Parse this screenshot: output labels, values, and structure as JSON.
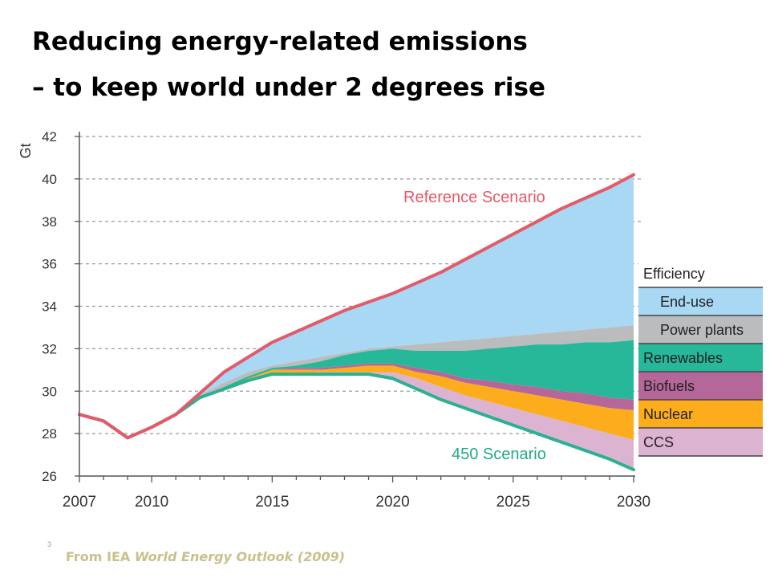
{
  "slide": {
    "title_line1": "Reducing energy-related emissions",
    "title_line2": "– to keep world under 2 degrees rise",
    "slide_number": "3",
    "source_prefix": "From IEA ",
    "source_work": "World Energy Outlook (2009)"
  },
  "chart_data": {
    "type": "area",
    "ylabel": "Gt",
    "xlim": [
      2007,
      2030
    ],
    "ylim": [
      26,
      42
    ],
    "yticks": [
      26,
      28,
      30,
      32,
      34,
      36,
      38,
      40,
      42
    ],
    "xticks": [
      2007,
      2010,
      2015,
      2020,
      2025,
      2030
    ],
    "grid": "horizontal dashed",
    "legend_position": "right",
    "x": [
      2007,
      2008,
      2009,
      2010,
      2011,
      2012,
      2013,
      2014,
      2015,
      2016,
      2017,
      2018,
      2019,
      2020,
      2021,
      2022,
      2023,
      2024,
      2025,
      2026,
      2027,
      2028,
      2029,
      2030
    ],
    "reference_scenario": {
      "name": "Reference Scenario",
      "color": "#e45a68",
      "values": [
        28.9,
        28.6,
        27.8,
        28.3,
        28.9,
        29.9,
        30.9,
        31.6,
        32.3,
        32.8,
        33.3,
        33.8,
        34.2,
        34.6,
        35.1,
        35.6,
        36.2,
        36.8,
        37.4,
        38.0,
        38.6,
        39.1,
        39.6,
        40.2
      ]
    },
    "scenario_450": {
      "name": "450 Scenario",
      "color": "#2bb090",
      "values": [
        28.9,
        28.6,
        27.8,
        28.3,
        28.9,
        29.7,
        30.1,
        30.5,
        30.8,
        30.8,
        30.8,
        30.8,
        30.8,
        30.6,
        30.1,
        29.6,
        29.2,
        28.8,
        28.4,
        28.0,
        27.6,
        27.2,
        26.8,
        26.3
      ]
    },
    "wedges": [
      {
        "name": "End-use",
        "group": "Efficiency",
        "color": "#a8d8f3",
        "top": [
          28.9,
          29.9,
          30.9,
          31.6,
          32.3,
          32.8,
          33.3,
          33.8,
          34.2,
          34.6,
          35.1,
          35.6,
          36.2,
          36.8,
          37.4,
          38.0,
          38.6,
          39.1,
          39.6,
          40.2
        ]
      },
      {
        "name": "Power plants",
        "group": "Efficiency",
        "color": "#bbbcbe",
        "top": [
          28.9,
          29.8,
          30.4,
          30.9,
          31.2,
          31.4,
          31.6,
          31.8,
          32.0,
          32.1,
          32.2,
          32.3,
          32.4,
          32.5,
          32.6,
          32.7,
          32.8,
          32.9,
          33.0,
          33.1
        ]
      },
      {
        "name": "Renewables",
        "group": "",
        "color": "#27b89a",
        "top": [
          28.9,
          29.7,
          30.2,
          30.7,
          31.1,
          31.2,
          31.4,
          31.7,
          31.9,
          32.0,
          31.9,
          31.9,
          31.9,
          32.0,
          32.1,
          32.2,
          32.2,
          32.3,
          32.3,
          32.4
        ]
      },
      {
        "name": "Biofuels",
        "group": "",
        "color": "#b5679a",
        "top": [
          28.9,
          29.7,
          30.1,
          30.6,
          31.0,
          31.1,
          31.1,
          31.2,
          31.3,
          31.3,
          31.1,
          30.9,
          30.6,
          30.5,
          30.3,
          30.2,
          30.0,
          29.9,
          29.7,
          29.6
        ]
      },
      {
        "name": "Nuclear",
        "group": "",
        "color": "#fdad1c",
        "top": [
          28.9,
          29.7,
          30.1,
          30.6,
          31.0,
          31.0,
          31.0,
          31.1,
          31.2,
          31.2,
          30.9,
          30.7,
          30.4,
          30.2,
          30.0,
          29.8,
          29.6,
          29.4,
          29.2,
          29.1
        ]
      },
      {
        "name": "CCS",
        "group": "",
        "color": "#dcb4d2",
        "top": [
          28.9,
          29.7,
          30.1,
          30.5,
          30.8,
          30.8,
          30.9,
          30.9,
          30.9,
          30.9,
          30.6,
          30.2,
          29.8,
          29.5,
          29.2,
          28.9,
          28.6,
          28.3,
          28.0,
          27.7
        ]
      }
    ],
    "wedge_x": [
      2011,
      2012,
      2013,
      2014,
      2015,
      2016,
      2017,
      2018,
      2019,
      2020,
      2021,
      2022,
      2023,
      2024,
      2025,
      2026,
      2027,
      2028,
      2029,
      2030
    ],
    "legend": [
      {
        "label": "Efficiency",
        "color": "#ffffff"
      },
      {
        "label": "End-use",
        "color": "#a8d8f3",
        "indent": true
      },
      {
        "label": "Power plants",
        "color": "#bbbcbe",
        "indent": true
      },
      {
        "label": "Renewables",
        "color": "#27b89a"
      },
      {
        "label": "Biofuels",
        "color": "#b5679a"
      },
      {
        "label": "Nuclear",
        "color": "#fdad1c"
      },
      {
        "label": "CCS",
        "color": "#dcb4d2"
      }
    ]
  }
}
